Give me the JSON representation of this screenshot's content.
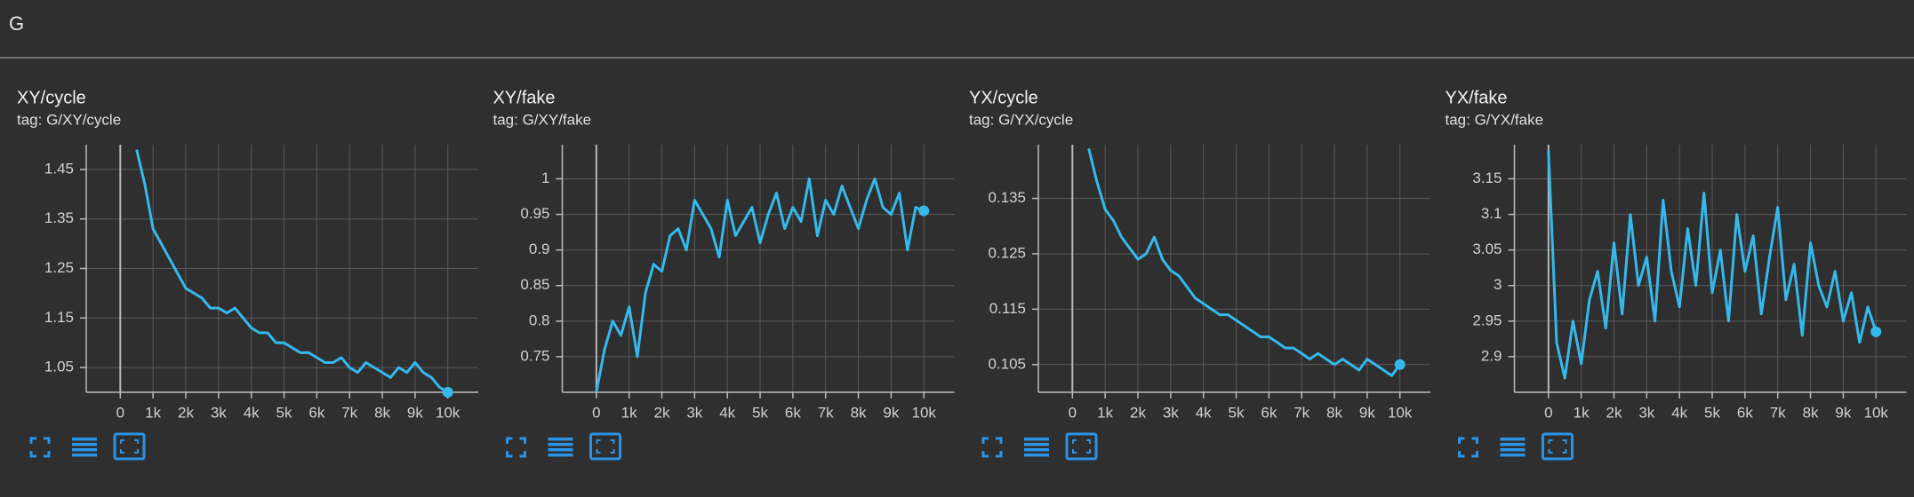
{
  "header": {
    "title": "G"
  },
  "chart_data": [
    {
      "type": "line",
      "title": "XY/cycle",
      "subtitle": "tag: G/XY/cycle",
      "color": "#35b9ec",
      "x": [
        500,
        750,
        1000,
        1250,
        1500,
        1750,
        2000,
        2250,
        2500,
        2750,
        3000,
        3250,
        3500,
        3750,
        4000,
        4250,
        4500,
        4750,
        5000,
        5250,
        5500,
        5750,
        6000,
        6250,
        6500,
        6750,
        7000,
        7250,
        7500,
        7750,
        8000,
        8250,
        8500,
        8750,
        9000,
        9250,
        9500,
        9750,
        10000
      ],
      "values": [
        1.49,
        1.42,
        1.33,
        1.3,
        1.27,
        1.24,
        1.21,
        1.2,
        1.19,
        1.17,
        1.17,
        1.16,
        1.17,
        1.15,
        1.13,
        1.12,
        1.12,
        1.1,
        1.1,
        1.09,
        1.08,
        1.08,
        1.07,
        1.06,
        1.06,
        1.07,
        1.05,
        1.04,
        1.06,
        1.05,
        1.04,
        1.03,
        1.05,
        1.04,
        1.06,
        1.04,
        1.03,
        1.01,
        1.0
      ],
      "xlim": [
        -1040,
        10930
      ],
      "ylim": [
        1.0,
        1.5
      ],
      "xticks": [
        0,
        {
          "value": 1000,
          "label": "1k"
        },
        {
          "value": 2000,
          "label": "2k"
        },
        {
          "value": 3000,
          "label": "3k"
        },
        {
          "value": 4000,
          "label": "4k"
        },
        {
          "value": 5000,
          "label": "5k"
        },
        {
          "value": 6000,
          "label": "6k"
        },
        {
          "value": 7000,
          "label": "7k"
        },
        {
          "value": 8000,
          "label": "8k"
        },
        {
          "value": 9000,
          "label": "9k"
        },
        {
          "value": 10000,
          "label": "10k"
        }
      ],
      "yticks": [
        1.05,
        1.15,
        1.25,
        1.35,
        1.45
      ],
      "grid": true
    },
    {
      "type": "line",
      "title": "XY/fake",
      "subtitle": "tag: G/XY/fake",
      "color": "#35b9ec",
      "x": [
        0,
        250,
        500,
        750,
        1000,
        1250,
        1500,
        1750,
        2000,
        2250,
        2500,
        2750,
        3000,
        3250,
        3500,
        3750,
        4000,
        4250,
        4500,
        4750,
        5000,
        5250,
        5500,
        5750,
        6000,
        6250,
        6500,
        6750,
        7000,
        7250,
        7500,
        7750,
        8000,
        8250,
        8500,
        8750,
        9000,
        9250,
        9500,
        9750,
        10000
      ],
      "values": [
        0.7,
        0.76,
        0.8,
        0.78,
        0.82,
        0.75,
        0.84,
        0.88,
        0.87,
        0.92,
        0.93,
        0.9,
        0.97,
        0.95,
        0.93,
        0.89,
        0.97,
        0.92,
        0.94,
        0.96,
        0.91,
        0.95,
        0.98,
        0.93,
        0.96,
        0.94,
        1.0,
        0.92,
        0.97,
        0.95,
        0.99,
        0.96,
        0.93,
        0.97,
        1.0,
        0.96,
        0.95,
        0.98,
        0.9,
        0.96,
        0.955
      ],
      "xlim": [
        -1040,
        10930
      ],
      "ylim": [
        0.7,
        1.048
      ],
      "xticks": [
        0,
        {
          "value": 1000,
          "label": "1k"
        },
        {
          "value": 2000,
          "label": "2k"
        },
        {
          "value": 3000,
          "label": "3k"
        },
        {
          "value": 4000,
          "label": "4k"
        },
        {
          "value": 5000,
          "label": "5k"
        },
        {
          "value": 6000,
          "label": "6k"
        },
        {
          "value": 7000,
          "label": "7k"
        },
        {
          "value": 8000,
          "label": "8k"
        },
        {
          "value": 9000,
          "label": "9k"
        },
        {
          "value": 10000,
          "label": "10k"
        }
      ],
      "yticks": [
        0.75,
        0.8,
        0.85,
        0.9,
        0.95,
        1
      ],
      "grid": true
    },
    {
      "type": "line",
      "title": "YX/cycle",
      "subtitle": "tag: G/YX/cycle",
      "color": "#35b9ec",
      "x": [
        0,
        250,
        500,
        750,
        1000,
        1250,
        1500,
        1750,
        2000,
        2250,
        2500,
        2750,
        3000,
        3250,
        3500,
        3750,
        4000,
        4250,
        4500,
        4750,
        5000,
        5250,
        5500,
        5750,
        6000,
        6250,
        6500,
        6750,
        7000,
        7250,
        7500,
        7750,
        8000,
        8250,
        8500,
        8750,
        9000,
        9250,
        9500,
        9750,
        10000
      ],
      "values": [
        null,
        null,
        0.144,
        0.138,
        0.133,
        0.131,
        0.128,
        0.126,
        0.124,
        0.125,
        0.128,
        0.124,
        0.122,
        0.121,
        0.119,
        0.117,
        0.116,
        0.115,
        0.114,
        0.114,
        0.113,
        0.112,
        0.111,
        0.11,
        0.11,
        0.109,
        0.108,
        0.108,
        0.107,
        0.106,
        0.107,
        0.106,
        0.105,
        0.106,
        0.105,
        0.104,
        0.106,
        0.105,
        0.104,
        0.103,
        0.105
      ],
      "xlim": [
        -1040,
        10930
      ],
      "ylim": [
        0.1,
        0.1447
      ],
      "xticks": [
        0,
        {
          "value": 1000,
          "label": "1k"
        },
        {
          "value": 2000,
          "label": "2k"
        },
        {
          "value": 3000,
          "label": "3k"
        },
        {
          "value": 4000,
          "label": "4k"
        },
        {
          "value": 5000,
          "label": "5k"
        },
        {
          "value": 6000,
          "label": "6k"
        },
        {
          "value": 7000,
          "label": "7k"
        },
        {
          "value": 8000,
          "label": "8k"
        },
        {
          "value": 9000,
          "label": "9k"
        },
        {
          "value": 10000,
          "label": "10k"
        }
      ],
      "yticks": [
        0.105,
        0.115,
        0.125,
        0.135
      ],
      "grid": true
    },
    {
      "type": "line",
      "title": "YX/fake",
      "subtitle": "tag: G/YX/fake",
      "color": "#35b9ec",
      "x": [
        0,
        250,
        500,
        750,
        1000,
        1250,
        1500,
        1750,
        2000,
        2250,
        2500,
        2750,
        3000,
        3250,
        3500,
        3750,
        4000,
        4250,
        4500,
        4750,
        5000,
        5250,
        5500,
        5750,
        6000,
        6250,
        6500,
        6750,
        7000,
        7250,
        7500,
        7750,
        8000,
        8250,
        8500,
        8750,
        9000,
        9250,
        9500,
        9750,
        10000
      ],
      "values": [
        3.19,
        2.92,
        2.87,
        2.95,
        2.89,
        2.98,
        3.02,
        2.94,
        3.06,
        2.96,
        3.1,
        3.0,
        3.04,
        2.95,
        3.12,
        3.02,
        2.97,
        3.08,
        3.0,
        3.13,
        2.99,
        3.05,
        2.95,
        3.1,
        3.02,
        3.07,
        2.96,
        3.04,
        3.11,
        2.98,
        3.03,
        2.93,
        3.06,
        3.0,
        2.97,
        3.02,
        2.95,
        2.99,
        2.92,
        2.97,
        2.935
      ],
      "xlim": [
        -1040,
        10930
      ],
      "ylim": [
        2.85,
        3.198
      ],
      "xticks": [
        0,
        {
          "value": 1000,
          "label": "1k"
        },
        {
          "value": 2000,
          "label": "2k"
        },
        {
          "value": 3000,
          "label": "3k"
        },
        {
          "value": 4000,
          "label": "4k"
        },
        {
          "value": 5000,
          "label": "5k"
        },
        {
          "value": 6000,
          "label": "6k"
        },
        {
          "value": 7000,
          "label": "7k"
        },
        {
          "value": 8000,
          "label": "8k"
        },
        {
          "value": 9000,
          "label": "9k"
        },
        {
          "value": 10000,
          "label": "10k"
        }
      ],
      "yticks": [
        2.9,
        2.95,
        3,
        3.05,
        3.1,
        3.15
      ],
      "grid": true
    }
  ]
}
